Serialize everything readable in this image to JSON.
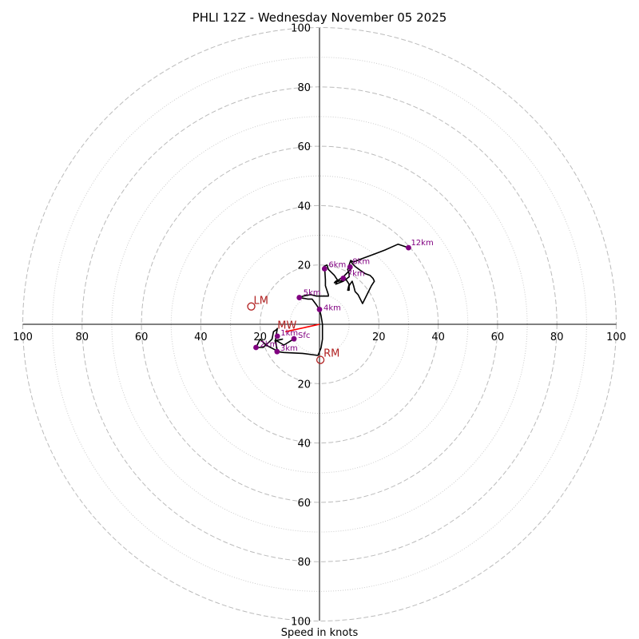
{
  "chart_data": {
    "type": "hodograph",
    "title": "PHLI 12Z - Wednesday November 05 2025",
    "xlabel": "Speed in knots",
    "units": "knots",
    "max_speed": 100,
    "rings_major": [
      20,
      40,
      60,
      80,
      100
    ],
    "rings_minor": [
      10,
      30,
      50,
      70,
      90
    ],
    "tick_labels": {
      "left": [
        "100",
        "80",
        "60",
        "40",
        "20"
      ],
      "right": [
        "20",
        "40",
        "60",
        "80",
        "100"
      ],
      "top": [
        "20",
        "40",
        "60",
        "80",
        "100"
      ],
      "bottom": [
        "20",
        "40",
        "60",
        "80",
        "100"
      ]
    },
    "colors": {
      "trace": "#000000",
      "height_marker": "#800080",
      "motion_marker": "#b22222",
      "mean_wind": "#ff0000",
      "grid": "#bbbbbb"
    },
    "trace": [
      [
        -8.6,
        -4.9
      ],
      [
        -12,
        -7
      ],
      [
        -14.5,
        -5.5
      ],
      [
        -12.5,
        -5
      ],
      [
        -15,
        -5.5
      ],
      [
        -14.5,
        -7.3
      ],
      [
        -14.2,
        -9
      ],
      [
        -18,
        -7
      ],
      [
        -20,
        -5
      ],
      [
        -21,
        -7
      ],
      [
        -21.4,
        -7.8
      ],
      [
        -19,
        -7.8
      ],
      [
        -17,
        -6
      ],
      [
        -16,
        -5
      ],
      [
        -15.5,
        -2.5
      ],
      [
        -14.5,
        -1.8
      ],
      [
        -14.2,
        -1.4
      ],
      [
        -14.8,
        -5
      ],
      [
        -14.3,
        -9.2
      ],
      [
        -12,
        -9.5
      ],
      [
        -5.8,
        -9.8
      ],
      [
        -0.5,
        -10.5
      ],
      [
        0.5,
        -8
      ],
      [
        1,
        -5
      ],
      [
        1,
        -2.5
      ],
      [
        1,
        0
      ],
      [
        0.5,
        3
      ],
      [
        0,
        5
      ],
      [
        -1,
        6.5
      ],
      [
        -2.5,
        8.5
      ],
      [
        -4,
        8.5
      ],
      [
        -5.5,
        8.8
      ],
      [
        -7,
        9
      ],
      [
        -5.5,
        9.5
      ],
      [
        -3,
        10
      ],
      [
        -1,
        9.5
      ],
      [
        1,
        9.5
      ],
      [
        3,
        9.5
      ],
      [
        3,
        10
      ],
      [
        2,
        13
      ],
      [
        2,
        15
      ],
      [
        1.8,
        18
      ],
      [
        1.5,
        19.5
      ],
      [
        2.5,
        20
      ],
      [
        3,
        18.5
      ],
      [
        5,
        16.5
      ],
      [
        6,
        15
      ],
      [
        5.5,
        13.5
      ],
      [
        8,
        14.5
      ],
      [
        10,
        16
      ],
      [
        10,
        17
      ],
      [
        9.5,
        18.5
      ],
      [
        10,
        20
      ],
      [
        10.5,
        21.5
      ],
      [
        11,
        20.5
      ],
      [
        11.5,
        20
      ],
      [
        12,
        19.5
      ],
      [
        14,
        18
      ],
      [
        15.5,
        17
      ],
      [
        17,
        16.5
      ],
      [
        18,
        15.5
      ],
      [
        18.5,
        14.5
      ],
      [
        17.5,
        13
      ],
      [
        16.5,
        11
      ],
      [
        15.5,
        9
      ],
      [
        14.5,
        7
      ],
      [
        14,
        8
      ],
      [
        13,
        10
      ],
      [
        12,
        11
      ],
      [
        11.5,
        13
      ],
      [
        11,
        14.5
      ],
      [
        10,
        13
      ],
      [
        10,
        11.5
      ],
      [
        9.5,
        11.5
      ],
      [
        10,
        13.5
      ],
      [
        9,
        15
      ],
      [
        6.7,
        14.6
      ],
      [
        5,
        14
      ],
      [
        5.5,
        14.5
      ],
      [
        6.5,
        15
      ],
      [
        8,
        16
      ],
      [
        9.5,
        17.5
      ],
      [
        10.5,
        18.5
      ],
      [
        10,
        20
      ],
      [
        10.5,
        21.5
      ],
      [
        11.5,
        21
      ],
      [
        14,
        22
      ],
      [
        18,
        23.5
      ],
      [
        22,
        25
      ],
      [
        26.5,
        27
      ],
      [
        28,
        26.5
      ],
      [
        30,
        25.8
      ]
    ],
    "height_markers": [
      {
        "label": "Sfc",
        "u": -8.6,
        "v": -4.9,
        "label_dx": 5,
        "label_dy": -1
      },
      {
        "label": "1km",
        "u": -14.2,
        "v": -4,
        "label_dx": 4,
        "label_dy": -1
      },
      {
        "label": "2km",
        "u": -21.4,
        "v": -7.8,
        "label_dx": 5,
        "label_dy": -1
      },
      {
        "label": "3km",
        "u": -14.3,
        "v": -9.2,
        "label_dx": 4,
        "label_dy": -1
      },
      {
        "label": "4km",
        "u": 0,
        "v": 5,
        "label_dx": 5,
        "label_dy": 1
      },
      {
        "label": "5km",
        "u": -6.8,
        "v": 9,
        "label_dx": 5,
        "label_dy": -3
      },
      {
        "label": "6km",
        "u": 1.7,
        "v": 18.7,
        "label_dx": 5,
        "label_dy": -2
      },
      {
        "label": "7km",
        "u": 8,
        "v": 15.5,
        "label_dx": 5,
        "label_dy": -3
      },
      {
        "label": "8km",
        "u": 10.3,
        "v": 19.3,
        "label_dx": 3,
        "label_dy": -4
      },
      {
        "label": "12km",
        "u": 30,
        "v": 25.8,
        "label_dx": 3,
        "label_dy": -3
      }
    ],
    "storm_motion": [
      {
        "label": "LM",
        "u": -23,
        "v": 6,
        "label_dx": 3,
        "label_dy": -3
      },
      {
        "label": "RM",
        "u": 0.3,
        "v": -12,
        "label_dx": 4,
        "label_dy": -4
      }
    ],
    "mean_wind": {
      "label": "MW",
      "u": -11.5,
      "v": -2.5
    }
  }
}
